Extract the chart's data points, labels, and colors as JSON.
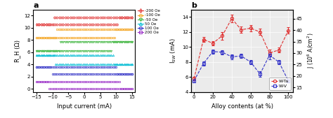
{
  "panel_a": {
    "title": "a",
    "xlabel": "Input current (mA)",
    "ylabel": "R_H (Ω)",
    "xlim": [
      -16,
      16
    ],
    "ylim": [
      -0.5,
      13
    ],
    "yticks": [
      0,
      2,
      4,
      6,
      8,
      10,
      12
    ],
    "xticks": [
      -15,
      -10,
      -5,
      0,
      5,
      10,
      15
    ],
    "curves": [
      {
        "label": "-200 Oe",
        "color": "#e03030",
        "marker": "d",
        "high_val": 11.7,
        "low_val": 10.5,
        "switch_up": 11,
        "switch_down": -10
      },
      {
        "label": "-100 Oe",
        "color": "#f5a623",
        "marker": "o",
        "high_val": 9.7,
        "low_val": 8.4,
        "switch_up": 10,
        "switch_down": -9
      },
      {
        "label": "-50 Oe",
        "color": "#3db53d",
        "marker": "v",
        "high_val": 7.7,
        "low_val": 6.2,
        "switch_up": 9,
        "switch_down": -8
      },
      {
        "label": "50 Oe",
        "color": "#00bcd4",
        "marker": "^",
        "high_val": 5.5,
        "low_val": 4.0,
        "switch_up": -9,
        "switch_down": 9
      },
      {
        "label": "100 Oe",
        "color": "#3535c8",
        "marker": "o",
        "high_val": 3.6,
        "low_val": 2.5,
        "switch_up": -10,
        "switch_down": 10
      },
      {
        "label": "200 Oe",
        "color": "#9b30c8",
        "marker": "s",
        "high_val": 1.2,
        "low_val": 0.1,
        "switch_up": -11,
        "switch_down": 11
      }
    ]
  },
  "panel_b": {
    "title": "b",
    "xlabel": "Alloy contents (at %)",
    "ylabel_left": "I$_{SW}$ (mA)",
    "ylabel_right": "J (10$^6$ A/cm$^2$)",
    "xlim": [
      -3,
      105
    ],
    "ylim_left": [
      4,
      15
    ],
    "ylim_right": [
      13,
      49
    ],
    "yticks_left": [
      4,
      6,
      8,
      10,
      12,
      14
    ],
    "yticks_right": [
      15,
      20,
      25,
      30,
      35,
      40,
      45
    ],
    "xticks": [
      0,
      20,
      40,
      60,
      80,
      100
    ],
    "wta_x": [
      0,
      10,
      20,
      30,
      40,
      50,
      60,
      70,
      80,
      90,
      100
    ],
    "wta_y": [
      5.8,
      11.0,
      10.5,
      11.5,
      13.8,
      12.3,
      12.5,
      12.0,
      9.2,
      9.6,
      12.2
    ],
    "wta_err": [
      0.2,
      0.3,
      0.3,
      0.5,
      0.5,
      0.4,
      0.4,
      0.4,
      0.5,
      0.3,
      0.4
    ],
    "wv_x": [
      0,
      10,
      20,
      30,
      40,
      50,
      60,
      70,
      80,
      90,
      100
    ],
    "wv_y": [
      5.5,
      7.8,
      9.4,
      9.3,
      8.7,
      8.8,
      8.0,
      6.4,
      8.9,
      8.0,
      5.5
    ],
    "wv_err": [
      0.2,
      0.3,
      0.3,
      0.3,
      0.3,
      0.3,
      0.3,
      0.4,
      0.5,
      0.3,
      0.2
    ],
    "wta_color": "#e03030",
    "wv_color": "#3535c8",
    "background_color": "#ebebeb"
  }
}
